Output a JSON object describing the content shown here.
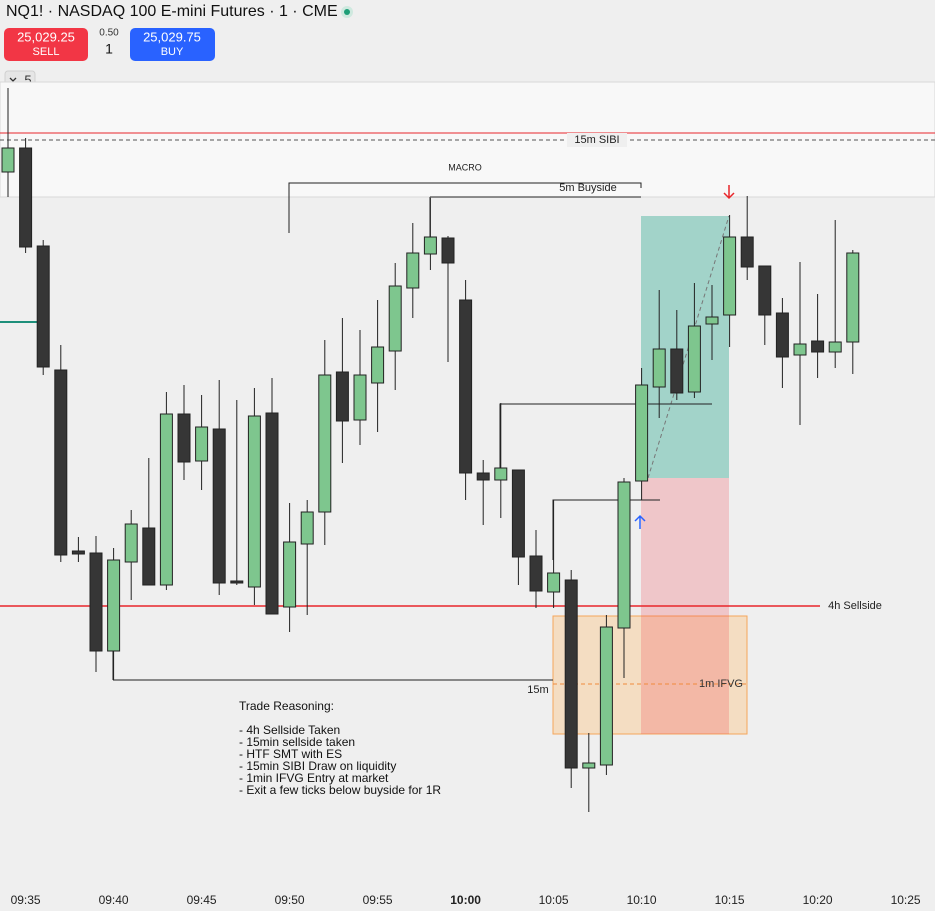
{
  "header": {
    "title": "NQ1! · NASDAQ 100 E-mini Futures · 1 · CME",
    "sell_price": "25,029.25",
    "sell_label": "SELL",
    "spread": "0.50",
    "quantity": "1",
    "buy_price": "25,029.75",
    "buy_label": "BUY",
    "indicator_count": "5"
  },
  "chart_data": {
    "type": "candlestick",
    "categories": [
      null,
      "09:35",
      null,
      null,
      null,
      null,
      "09:40",
      null,
      null,
      null,
      null,
      "09:45",
      null,
      null,
      null,
      null,
      "09:50",
      null,
      null,
      null,
      null,
      "09:55",
      null,
      null,
      null,
      null,
      "10:00",
      null,
      null,
      null,
      null,
      "10:05",
      null,
      null,
      null,
      null,
      "10:10",
      null,
      null,
      null,
      null,
      "10:15",
      null,
      null,
      null,
      null,
      "10:20",
      null,
      null,
      null,
      null,
      "10:25"
    ],
    "open": [
      25049.75,
      25055.75,
      25031.25,
      25000.25,
      24955,
      24954.5,
      24930,
      24952.25,
      24960.75,
      24946.5,
      24989.25,
      24977.5,
      24985.5,
      24947.5,
      24946,
      24989.5,
      24941,
      24956.75,
      24964.75,
      24999.75,
      24987.75,
      24997,
      25005,
      25020.75,
      25029.25,
      25033.25,
      25017.75,
      24974.5,
      24972.75,
      24975.25,
      24953.75,
      24944.75,
      24947.75,
      24900.75,
      24901.5,
      24935.75,
      24972.5,
      24996,
      25005.5,
      24994.75,
      25011.75,
      25014,
      25033.5,
      25026.25,
      25014.5,
      25004,
      25007.5,
      25004.75,
      25007.25,
      null,
      null,
      null
    ],
    "high": [
      25070.75,
      25058.25,
      25032.75,
      25006.5,
      24958.5,
      24958.75,
      24955.75,
      24965.25,
      24978.25,
      24994.75,
      24996.5,
      24994,
      24997.75,
      24992.75,
      24995.75,
      24998.25,
      24967,
      24967.75,
      25007.75,
      25013.25,
      25010.25,
      25017.75,
      25027,
      25037,
      25043.25,
      25033.75,
      25022.75,
      24977.75,
      24992,
      24975.25,
      24960.25,
      24967.75,
      24950.25,
      24909.5,
      24939,
      24973.25,
      25000.75,
      25020.25,
      25015.25,
      25022,
      25021.5,
      25039,
      25043.75,
      25026.25,
      25018.25,
      25027.25,
      25019.25,
      25037.75,
      25030.25,
      null,
      null,
      null
    ],
    "low": [
      25043.5,
      25029.5,
      24999,
      24952.25,
      24952.25,
      24924.75,
      24922.75,
      24942.75,
      24946.5,
      24945.25,
      24972.75,
      24970.25,
      24944,
      24946.5,
      24941.5,
      24939.25,
      24934.75,
      24939,
      24956.5,
      24977,
      24981.5,
      24984.75,
      24995.25,
      25013.25,
      25025.25,
      25002.25,
      24967.75,
      24961.5,
      24963.25,
      24946.5,
      24940.75,
      24940.75,
      24895.75,
      24889.75,
      24899,
      24923.25,
      24967.75,
      24988.25,
      24992.75,
      24993.25,
      25002.75,
      25006,
      25022.75,
      25006.5,
      24995.75,
      24986.5,
      24998.25,
      25000.75,
      24999.25,
      null,
      null,
      null
    ],
    "close": [
      25055.75,
      25031,
      25001,
      24954,
      24954.25,
      24930,
      24952.75,
      24961.75,
      24946.5,
      24989.25,
      24977.25,
      24986,
      24947,
      24947,
      24988.75,
      24939.25,
      24957.25,
      24964.75,
      24999,
      24987.5,
      24999,
      25006,
      25021.25,
      25029.5,
      25033.5,
      25027,
      24974.5,
      24972.75,
      24975.75,
      24953.5,
      24945,
      24949.5,
      24900.75,
      24902,
      24936,
      24972.25,
      24996.5,
      25005.5,
      24994.5,
      25011.25,
      25013.5,
      25033.5,
      25026,
      25014,
      25003.5,
      25006.75,
      25004.75,
      25007.25,
      25029.5,
      null,
      null,
      null
    ],
    "up_color": "#7ec68e",
    "down_color": "#363636",
    "ylim": [
      24871.5,
      25072.25
    ],
    "levels": [
      {
        "label": "15m SIBI",
        "value": 25057.75,
        "color": "#555555"
      },
      {
        "label": "5m Buyside",
        "value": 25043.5,
        "color": "#222222"
      },
      {
        "label": "4h Sellside",
        "value": 24941.25,
        "color": "#e8262b"
      },
      {
        "label": "15m",
        "value": 24922.75,
        "color": "#222222"
      },
      {
        "label": "1m IFVG",
        "value": 24921.75,
        "color": "#f08a3c"
      }
    ],
    "sibi_line": 25059.5,
    "sibi_zone": [
      25043.5,
      25072.25
    ],
    "ifvg_zone": [
      24909.25,
      24938.75
    ],
    "position": {
      "entry": 24973.25,
      "target": 25038.75,
      "stop": 24909.25
    },
    "macro_label": "MACRO",
    "notes": [
      "Trade Reasoning:",
      "- 4h Sellside Taken",
      "- 15min sellside taken",
      "- HTF SMT with ES",
      "- 15min SIBI Draw on liquidity",
      "- 1min IFVG Entry at market",
      "- Exit a few ticks below buyside for 1R"
    ]
  }
}
